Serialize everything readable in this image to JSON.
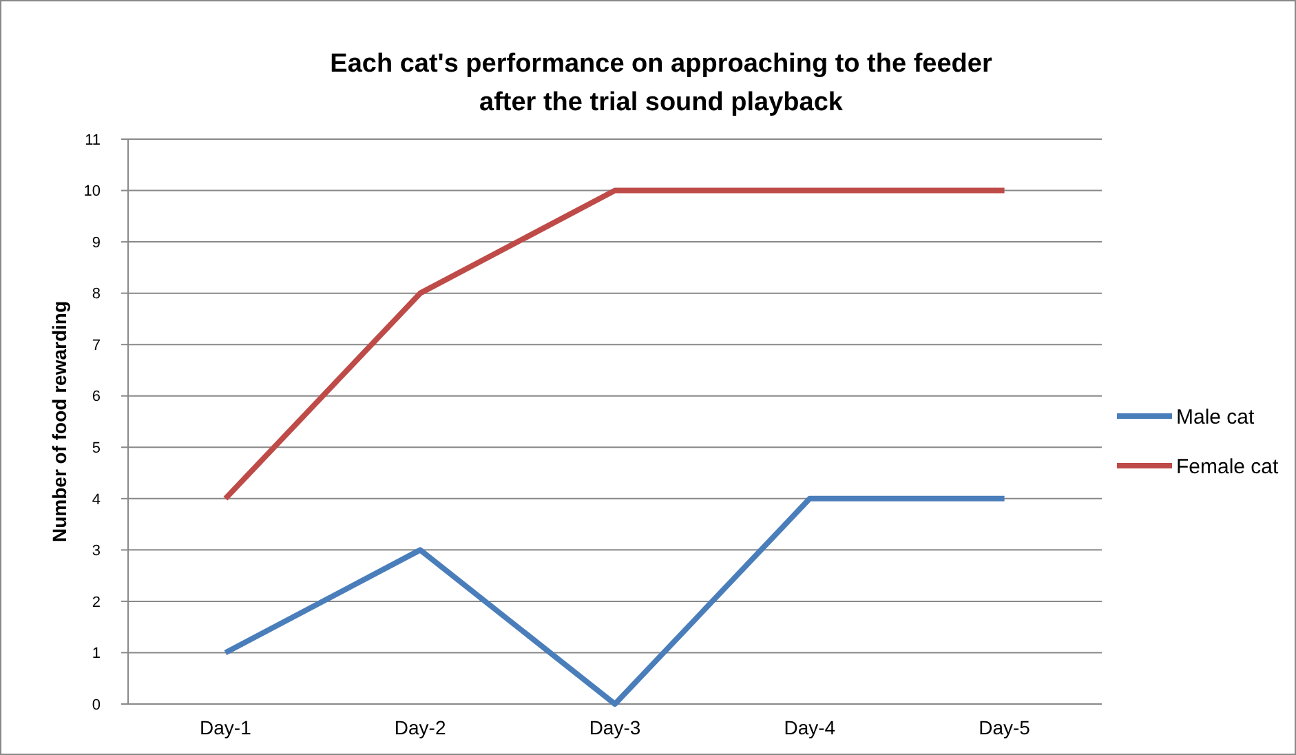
{
  "chart_data": {
    "type": "line",
    "title": "Each cat's performance on approaching to the feeder\nafter the trial sound playback",
    "ylabel": "Number of food rewarding",
    "categories": [
      "Day-1",
      "Day-2",
      "Day-3",
      "Day-4",
      "Day-5"
    ],
    "series": [
      {
        "name": "Male cat",
        "color": "#4a7ebb",
        "values": [
          1,
          3,
          0,
          4,
          4
        ]
      },
      {
        "name": "Female cat",
        "color": "#be4b48",
        "values": [
          4,
          8,
          10,
          10,
          10
        ]
      }
    ],
    "ylim": [
      0,
      11
    ],
    "yticks": [
      0,
      1,
      2,
      3,
      4,
      5,
      6,
      7,
      8,
      9,
      10,
      11
    ],
    "grid": "y",
    "legend": "right",
    "marker": "none",
    "line_style": "solid"
  }
}
